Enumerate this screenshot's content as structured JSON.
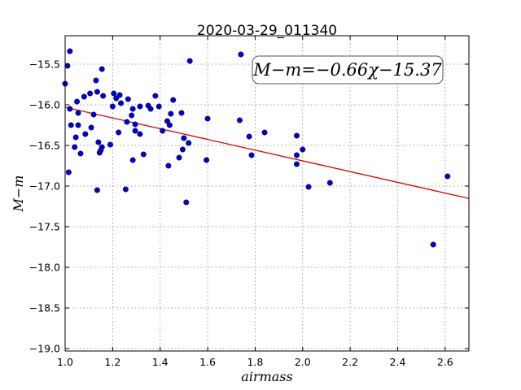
{
  "chart_data": {
    "type": "scatter",
    "title": "2020-03-29_011340",
    "xlabel": "airmass",
    "ylabel": "M−m",
    "xlim": [
      1.0,
      2.7
    ],
    "ylim": [
      -19.03,
      -15.15
    ],
    "y_inverted": true,
    "x_ticks": [
      "1.0",
      "1.2",
      "1.4",
      "1.6",
      "1.8",
      "2.0",
      "2.2",
      "2.4",
      "2.6"
    ],
    "x_tick_values": [
      1.0,
      1.2,
      1.4,
      1.6,
      1.8,
      2.0,
      2.2,
      2.4,
      2.6
    ],
    "y_ticks": [
      "−15.5",
      "−16.0",
      "−16.5",
      "−17.0",
      "−17.5",
      "−18.0",
      "−18.5",
      "−19.0"
    ],
    "y_tick_values": [
      -15.5,
      -16.0,
      -16.5,
      -17.0,
      -17.5,
      -18.0,
      -18.5,
      -19.0
    ],
    "grid": true,
    "point_color": "#0000cc",
    "line_color": "#dd0000",
    "fit": {
      "slope": -0.66,
      "intercept": -15.37
    },
    "annotation": "M−m=−0.66χ−15.37",
    "annotation_position": "top-right",
    "points": [
      [
        1.0,
        -15.74
      ],
      [
        1.01,
        -15.52
      ],
      [
        1.015,
        -16.83
      ],
      [
        1.02,
        -15.34
      ],
      [
        1.02,
        -16.05
      ],
      [
        1.025,
        -16.25
      ],
      [
        1.04,
        -16.52
      ],
      [
        1.045,
        -16.4
      ],
      [
        1.05,
        -15.96
      ],
      [
        1.055,
        -16.1
      ],
      [
        1.055,
        -16.25
      ],
      [
        1.065,
        -16.6
      ],
      [
        1.08,
        -15.9
      ],
      [
        1.085,
        -16.36
      ],
      [
        1.105,
        -15.86
      ],
      [
        1.11,
        -16.28
      ],
      [
        1.12,
        -16.12
      ],
      [
        1.13,
        -15.7
      ],
      [
        1.135,
        -15.84
      ],
      [
        1.135,
        -17.05
      ],
      [
        1.14,
        -16.46
      ],
      [
        1.145,
        -16.59
      ],
      [
        1.15,
        -16.56
      ],
      [
        1.155,
        -15.56
      ],
      [
        1.155,
        -16.52
      ],
      [
        1.16,
        -15.89
      ],
      [
        1.19,
        -16.49
      ],
      [
        1.2,
        -16.02
      ],
      [
        1.205,
        -15.86
      ],
      [
        1.215,
        -15.92
      ],
      [
        1.225,
        -16.34
      ],
      [
        1.23,
        -15.88
      ],
      [
        1.235,
        -15.98
      ],
      [
        1.255,
        -17.04
      ],
      [
        1.26,
        -16.21
      ],
      [
        1.265,
        -15.93
      ],
      [
        1.28,
        -16.13
      ],
      [
        1.285,
        -16.68
      ],
      [
        1.285,
        -16.05
      ],
      [
        1.295,
        -16.32
      ],
      [
        1.295,
        -16.24
      ],
      [
        1.315,
        -16.36
      ],
      [
        1.315,
        -16.02
      ],
      [
        1.33,
        -16.61
      ],
      [
        1.35,
        -16.01
      ],
      [
        1.36,
        -16.05
      ],
      [
        1.38,
        -15.89
      ],
      [
        1.395,
        -16.02
      ],
      [
        1.41,
        -16.32
      ],
      [
        1.43,
        -16.2
      ],
      [
        1.435,
        -16.75
      ],
      [
        1.44,
        -16.25
      ],
      [
        1.445,
        -16.11
      ],
      [
        1.455,
        -15.94
      ],
      [
        1.48,
        -16.65
      ],
      [
        1.49,
        -16.1
      ],
      [
        1.495,
        -16.55
      ],
      [
        1.5,
        -16.41
      ],
      [
        1.51,
        -17.2
      ],
      [
        1.52,
        -16.47
      ],
      [
        1.525,
        -15.46
      ],
      [
        1.595,
        -16.68
      ],
      [
        1.6,
        -16.17
      ],
      [
        1.735,
        -16.19
      ],
      [
        1.74,
        -15.38
      ],
      [
        1.775,
        -16.39
      ],
      [
        1.785,
        -16.62
      ],
      [
        1.84,
        -16.34
      ],
      [
        1.975,
        -16.38
      ],
      [
        1.975,
        -16.62
      ],
      [
        1.975,
        -16.73
      ],
      [
        2.0,
        -16.55
      ],
      [
        2.025,
        -17.01
      ],
      [
        2.115,
        -16.96
      ],
      [
        2.55,
        -17.72
      ],
      [
        2.61,
        -16.88
      ]
    ]
  }
}
